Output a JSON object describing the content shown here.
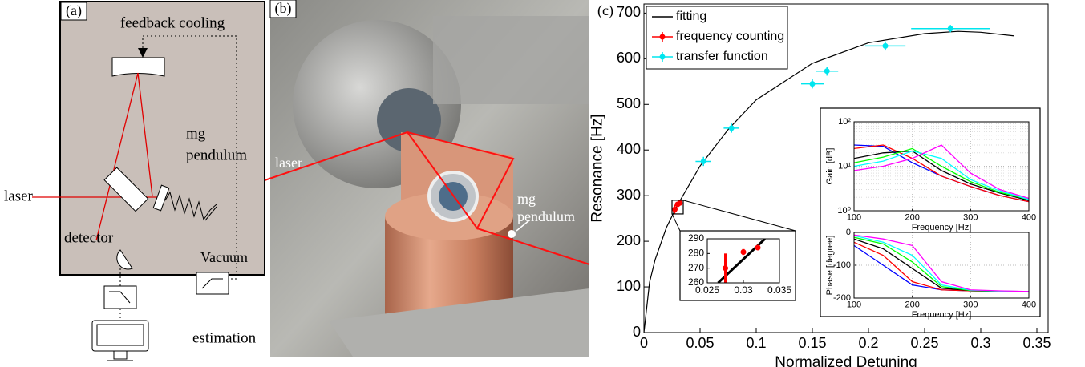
{
  "panel_a": {
    "label": "(a)",
    "feedback": "feedback cooling",
    "pendulum": [
      "mg",
      "pendulum"
    ],
    "laser": "laser",
    "detector": "detector",
    "vacuum": "Vacuum",
    "estimation": "estimation"
  },
  "panel_b": {
    "label": "(b)",
    "pendulum": [
      "mg",
      "pendulum"
    ],
    "laser": "laser"
  },
  "panel_c_label": "(c)",
  "chart_data": [
    {
      "type": "line",
      "xlabel": "Normalized Detuning",
      "ylabel": "Resonance [Hz]",
      "xlim": [
        0,
        0.36
      ],
      "ylim": [
        0,
        720
      ],
      "xticks": [
        0,
        0.05,
        0.1,
        0.15,
        0.2,
        0.25,
        0.3,
        0.35
      ],
      "yticks": [
        0,
        100,
        200,
        300,
        400,
        500,
        600,
        700
      ],
      "legend": "upper left",
      "series": [
        {
          "name": "fitting",
          "color": "#000000",
          "x": [
            0,
            0.005,
            0.01,
            0.02,
            0.03,
            0.05,
            0.075,
            0.1,
            0.15,
            0.2,
            0.25,
            0.28,
            0.3,
            0.33
          ],
          "values": [
            0,
            110,
            160,
            230,
            280,
            365,
            445,
            510,
            590,
            635,
            655,
            660,
            658,
            650
          ]
        },
        {
          "name": "frequency counting",
          "color": "#ff0000",
          "x": [
            0.0275,
            0.03,
            0.032
          ],
          "values": [
            270,
            281,
            284
          ],
          "yerr": [
            10,
            2,
            1
          ]
        },
        {
          "name": "transfer function",
          "color": "#00e5ee",
          "x": [
            0.053,
            0.078,
            0.15,
            0.163,
            0.215,
            0.273
          ],
          "values": [
            375,
            448,
            545,
            573,
            628,
            666
          ],
          "xerr": [
            0.007,
            0.007,
            0.01,
            0.01,
            0.018,
            0.035
          ],
          "yerr": [
            10,
            10,
            10,
            10,
            10,
            8
          ]
        }
      ]
    },
    {
      "type": "line",
      "xlim": [
        0.025,
        0.035
      ],
      "ylim": [
        260,
        290
      ],
      "xticks": [
        0.025,
        0.03,
        0.035
      ],
      "yticks": [
        260,
        270,
        280,
        290
      ],
      "series": [
        {
          "color": "#000000",
          "x": [
            0.0265,
            0.033
          ],
          "values": [
            260,
            290
          ]
        },
        {
          "color": "#ff0000",
          "x": [
            0.0275,
            0.03,
            0.032
          ],
          "values": [
            270,
            281,
            284
          ],
          "yerr": [
            10,
            2,
            1
          ]
        }
      ]
    },
    {
      "type": "line",
      "xlabel": "Frequency [Hz]",
      "ylabel": "Gain [dB]",
      "log": true,
      "grid": true,
      "xlim": [
        100,
        400
      ],
      "ylim": [
        1,
        100
      ],
      "xticks": [
        100,
        200,
        300,
        400
      ],
      "yticks": [
        {
          "value": 1,
          "label": "10⁰"
        },
        {
          "value": 10,
          "label": "10¹"
        },
        {
          "value": 100,
          "label": "10²"
        }
      ],
      "x": [
        100,
        150,
        200,
        250,
        300,
        350,
        400
      ],
      "series": [
        {
          "color": "#0000ff",
          "values": [
            30,
            28,
            12,
            6,
            3.5,
            2.2,
            1.6
          ]
        },
        {
          "color": "#ff0000",
          "values": [
            25,
            30,
            15,
            6,
            3.5,
            2.2,
            1.6
          ]
        },
        {
          "color": "#000000",
          "values": [
            15,
            20,
            22,
            8,
            4,
            2.5,
            1.7
          ]
        },
        {
          "color": "#00ff00",
          "values": [
            12,
            16,
            25,
            10,
            4.5,
            2.6,
            1.8
          ]
        },
        {
          "color": "#00ffff",
          "values": [
            10,
            13,
            22,
            15,
            5,
            2.8,
            1.8
          ]
        },
        {
          "color": "#ff00ff",
          "values": [
            8,
            10,
            15,
            30,
            7,
            3,
            1.9
          ]
        }
      ]
    },
    {
      "type": "line",
      "xlabel": "Frequency [Hz]",
      "ylabel": "Phase [degree]",
      "grid": true,
      "xlim": [
        100,
        400
      ],
      "ylim": [
        -200,
        0
      ],
      "xticks": [
        100,
        200,
        300,
        400
      ],
      "yticks": [
        -200,
        -100,
        0
      ],
      "x": [
        100,
        150,
        200,
        250,
        300,
        350,
        400
      ],
      "series": [
        {
          "color": "#0000ff",
          "values": [
            -40,
            -100,
            -160,
            -175,
            -178,
            -180,
            -180
          ]
        },
        {
          "color": "#ff0000",
          "values": [
            -30,
            -70,
            -150,
            -175,
            -178,
            -180,
            -180
          ]
        },
        {
          "color": "#000000",
          "values": [
            -20,
            -50,
            -110,
            -170,
            -177,
            -180,
            -180
          ]
        },
        {
          "color": "#00ff00",
          "values": [
            -15,
            -35,
            -90,
            -165,
            -177,
            -179,
            -180
          ]
        },
        {
          "color": "#00ffff",
          "values": [
            -10,
            -30,
            -70,
            -160,
            -176,
            -179,
            -180
          ]
        },
        {
          "color": "#ff00ff",
          "values": [
            -8,
            -20,
            -40,
            -150,
            -175,
            -178,
            -180
          ]
        }
      ]
    }
  ]
}
